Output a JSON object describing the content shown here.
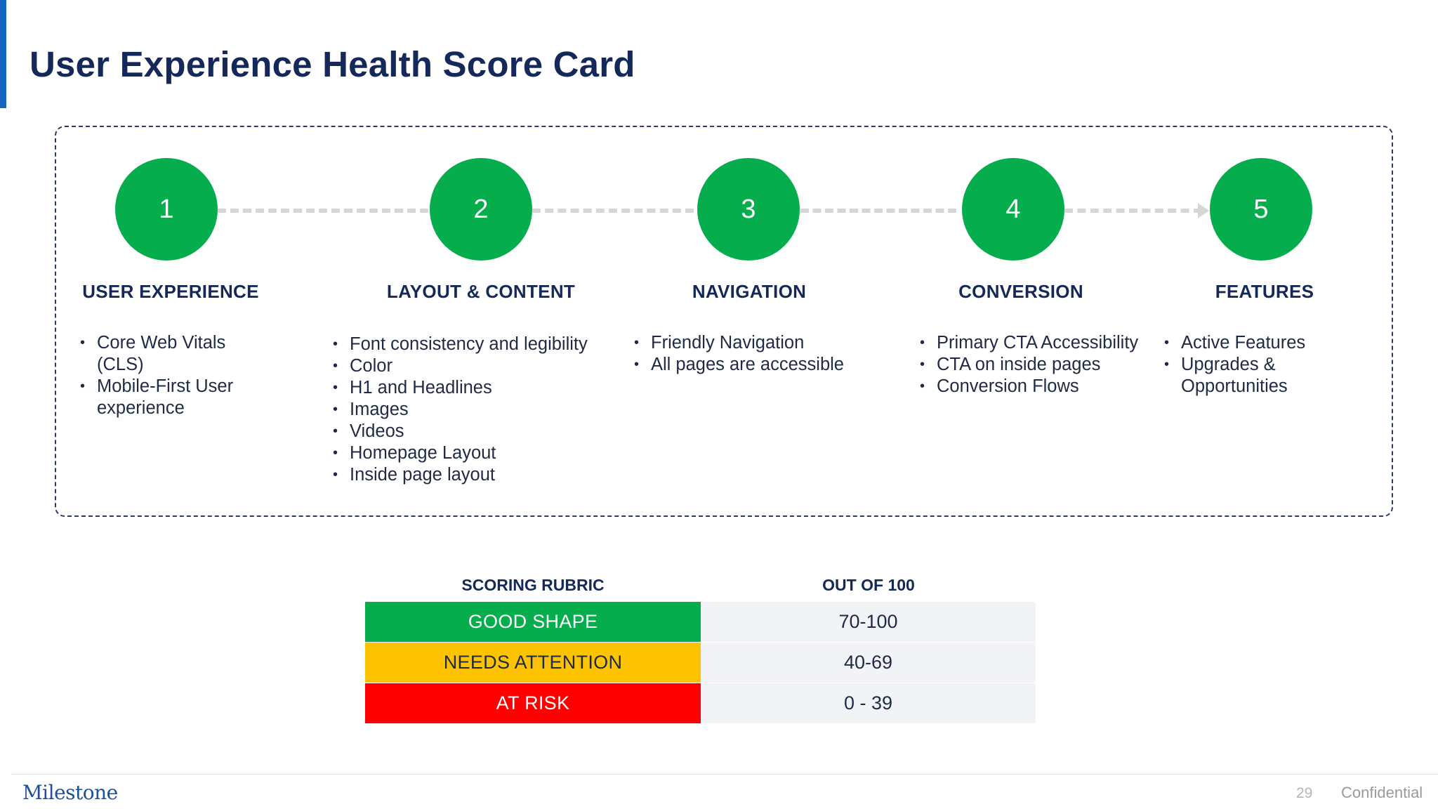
{
  "slide": {
    "title": "User Experience Health Score Card",
    "page_number": "29",
    "confidential_label": "Confidential",
    "logo_text": "Milestone"
  },
  "steps": [
    {
      "number": "1",
      "title": "USER EXPERIENCE",
      "items": [
        "Core Web Vitals (CLS)",
        "Mobile-First User experience"
      ]
    },
    {
      "number": "2",
      "title": "LAYOUT & CONTENT",
      "items": [
        "Font consistency and legibility",
        "Color",
        "H1 and Headlines",
        "Images",
        "Videos",
        "Homepage Layout",
        "Inside page layout"
      ]
    },
    {
      "number": "3",
      "title": "NAVIGATION",
      "items": [
        "Friendly Navigation",
        "All pages are accessible"
      ]
    },
    {
      "number": "4",
      "title": "CONVERSION",
      "items": [
        "Primary CTA Accessibility",
        "CTA on inside pages",
        "Conversion Flows"
      ]
    },
    {
      "number": "5",
      "title": "FEATURES",
      "items": [
        "Active Features",
        "Upgrades & Opportunities"
      ]
    }
  ],
  "rubric": {
    "header_label": "SCORING RUBRIC",
    "header_range": "OUT OF 100",
    "rows": [
      {
        "label": "GOOD SHAPE",
        "range": "70-100",
        "color": "#05ad4c",
        "text_color": "#ffffff"
      },
      {
        "label": "NEEDS ATTENTION",
        "range": "40-69",
        "color": "#fdc200",
        "text_color": "#1f2a44"
      },
      {
        "label": "AT RISK",
        "range": "0 - 39",
        "color": "#fe0000",
        "text_color": "#ffffff"
      }
    ]
  },
  "colors": {
    "accent": "#1565c0",
    "title": "#14285a",
    "step_circle": "#05ad4c"
  }
}
